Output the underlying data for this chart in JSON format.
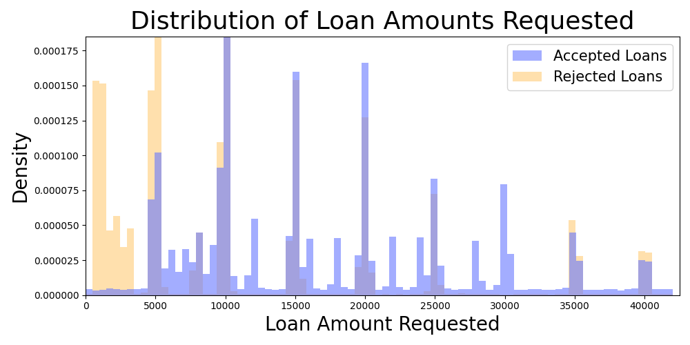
{
  "title": "Distribution of Loan Amounts Requested",
  "xlabel": "Loan Amount Requested",
  "ylabel": "Density",
  "title_fontsize": 26,
  "label_fontsize": 20,
  "accepted_color": "#6677ff",
  "rejected_color": "#ffcc77",
  "accepted_alpha": 0.6,
  "rejected_alpha": 0.6,
  "accepted_label": "Accepted Loans",
  "rejected_label": "Rejected Loans",
  "bins": 85,
  "xlim": [
    0,
    42500
  ],
  "ylim": [
    0,
    0.000185
  ],
  "legend_fontsize": 15,
  "figwidth": 10,
  "figheight": 5
}
